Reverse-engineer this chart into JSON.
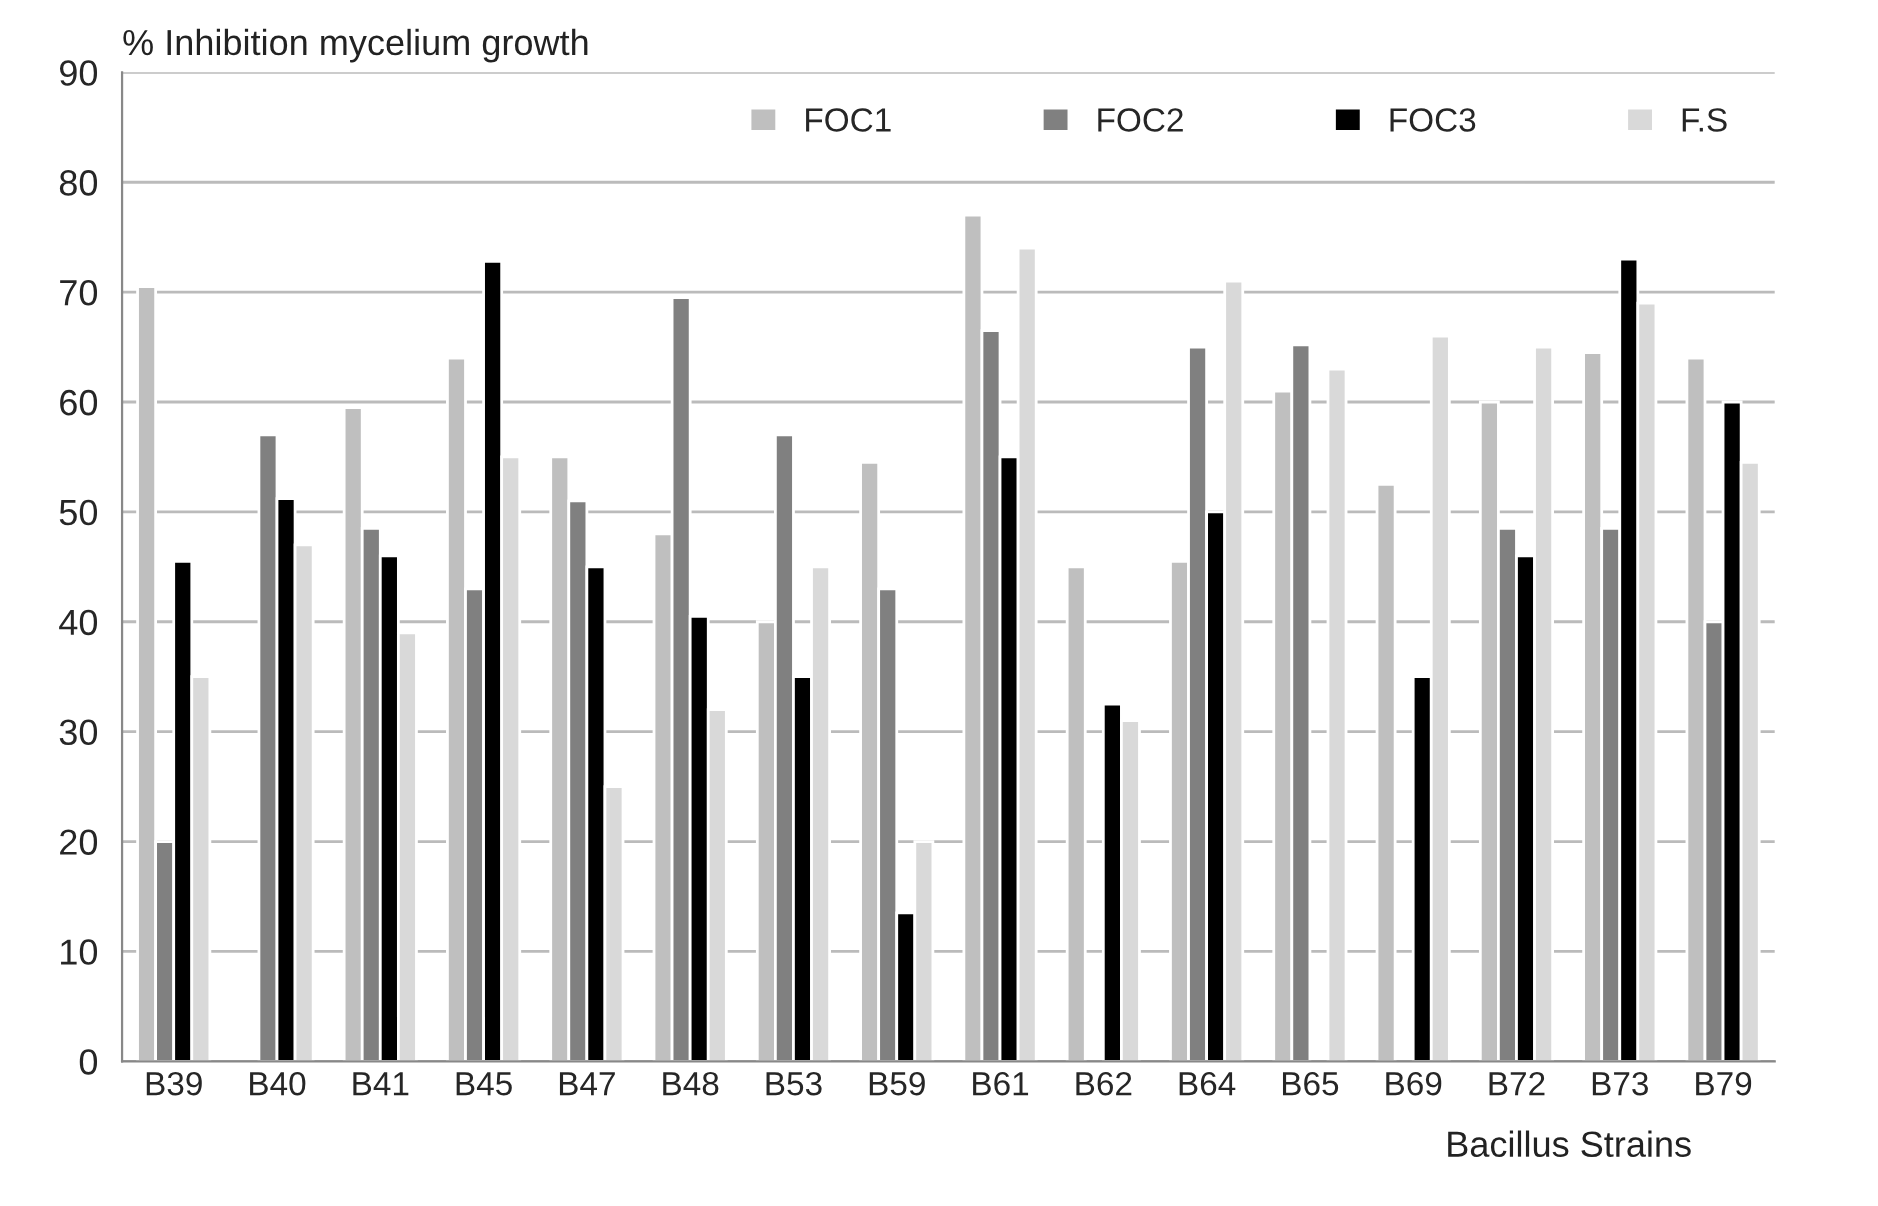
{
  "chart_data": {
    "type": "bar",
    "ylabel": "% Inhibition mycelium growth",
    "xlabel": "Bacillus Strains",
    "categories": [
      "B39",
      "B40",
      "B41",
      "B45",
      "B47",
      "B48",
      "B53",
      "B59",
      "B61",
      "B62",
      "B64",
      "B65",
      "B69",
      "B72",
      "B73",
      "B79"
    ],
    "series": [
      {
        "name": "FOC1",
        "color": "#bfbfbf",
        "values": [
          70.5,
          null,
          59.5,
          64,
          55,
          48,
          40,
          54.5,
          77,
          45,
          45.5,
          61,
          52.5,
          60,
          64.5,
          64
        ]
      },
      {
        "name": "FOC2",
        "color": "#808080",
        "values": [
          20,
          57,
          48.5,
          43,
          51,
          69.5,
          57,
          43,
          66.5,
          null,
          65,
          65.2,
          null,
          48.5,
          48.5,
          40
        ]
      },
      {
        "name": "FOC3",
        "color": "#000000",
        "values": [
          45.5,
          51.2,
          46,
          72.8,
          45,
          40.5,
          35,
          13.5,
          55,
          32.5,
          50,
          null,
          35,
          46,
          73,
          60
        ]
      },
      {
        "name": "F.S",
        "color": "#d9d9d9",
        "values": [
          35,
          47,
          39,
          55,
          25,
          32,
          45,
          20,
          74,
          31,
          71,
          63,
          66,
          65,
          69,
          54.5
        ]
      }
    ],
    "ylim": [
      0,
      90
    ],
    "yticks": [
      0,
      10,
      20,
      30,
      40,
      50,
      60,
      70,
      80,
      90
    ],
    "grid": "y",
    "legend": "top right"
  }
}
